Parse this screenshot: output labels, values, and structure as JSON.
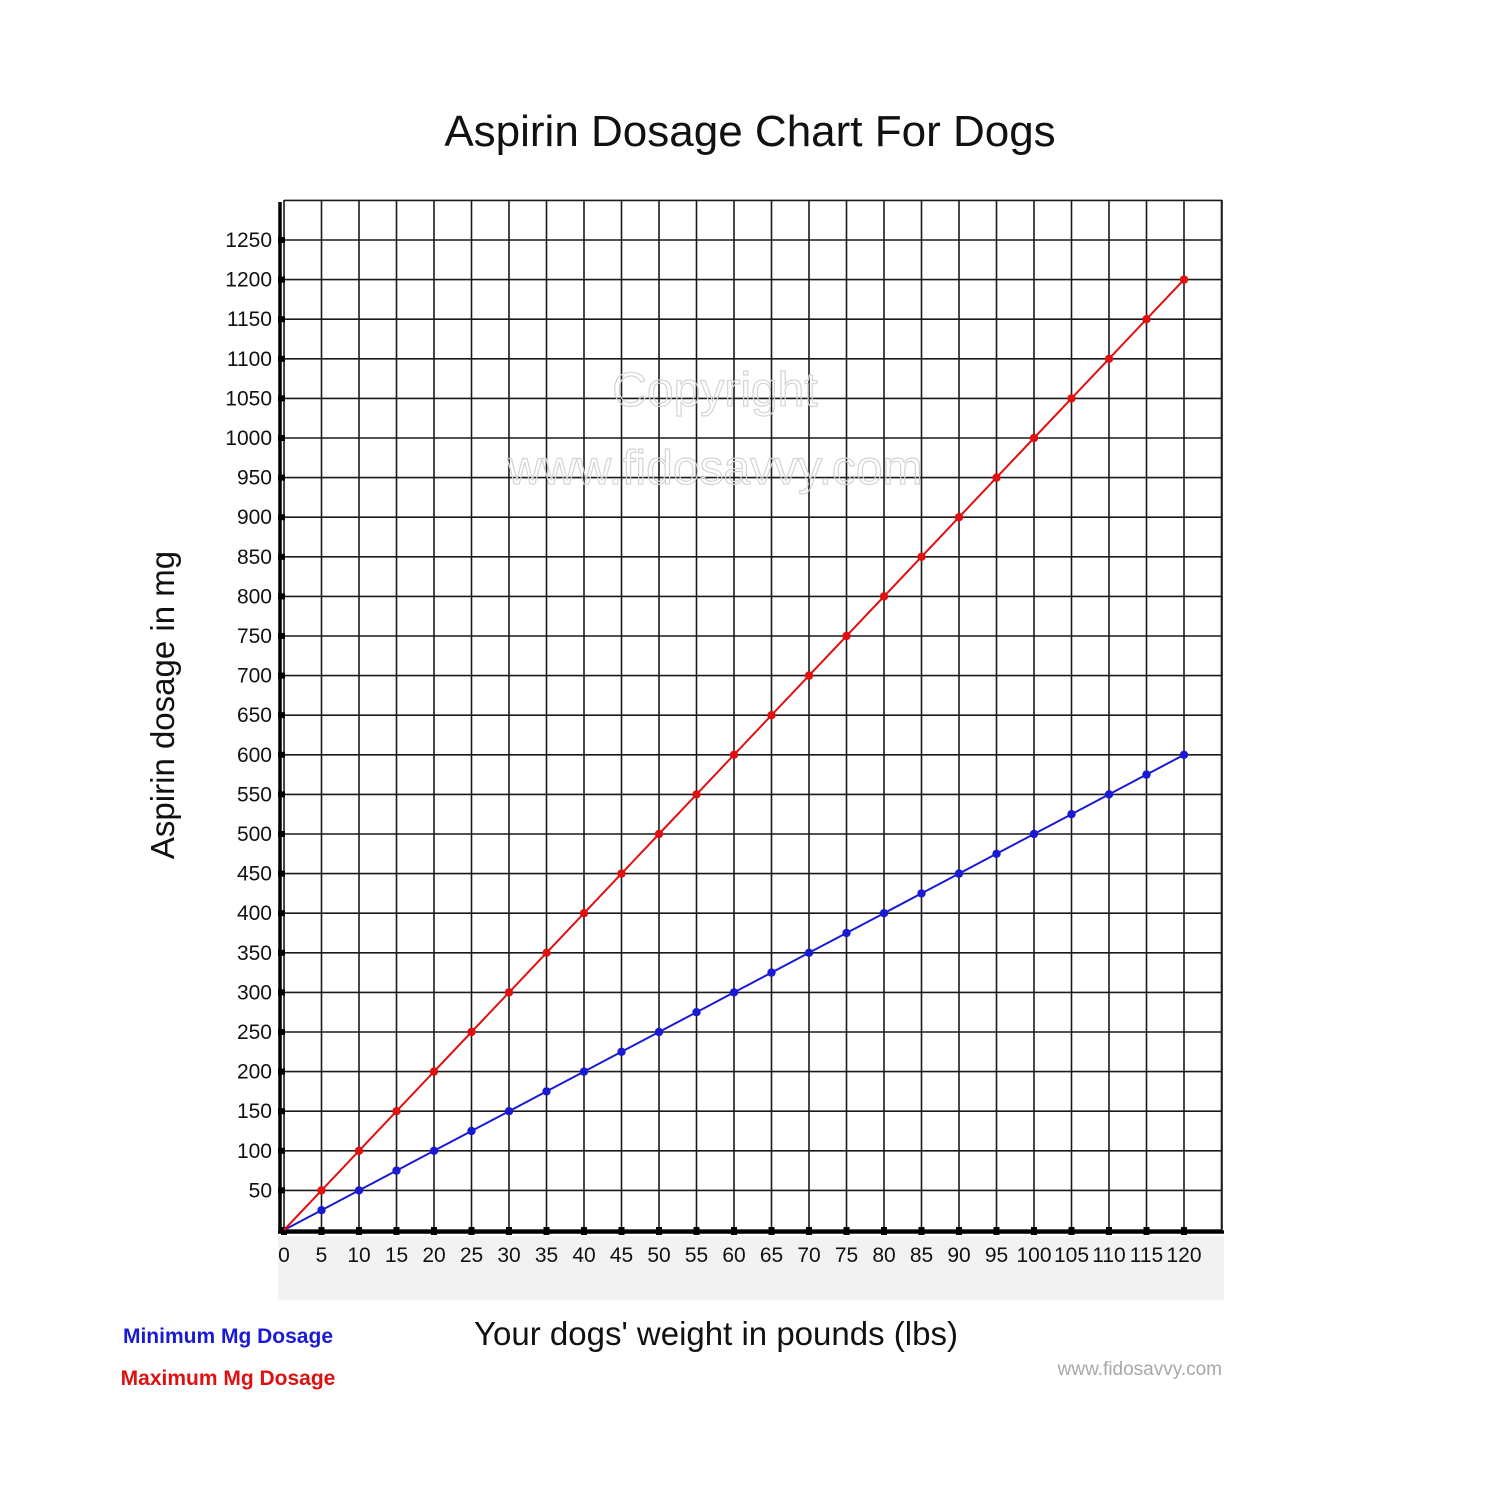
{
  "chart_data": {
    "type": "line",
    "title": "Aspirin Dosage Chart For Dogs",
    "xlabel": "Your dogs' weight in pounds (lbs)",
    "ylabel": "Aspirin dosage in mg",
    "x": [
      0,
      5,
      10,
      15,
      20,
      25,
      30,
      35,
      40,
      45,
      50,
      55,
      60,
      65,
      70,
      75,
      80,
      85,
      90,
      95,
      100,
      105,
      110,
      115,
      120
    ],
    "xlim": [
      0,
      120
    ],
    "ylim": [
      0,
      1250
    ],
    "x_ticks": [
      "0",
      "5",
      "10",
      "15",
      "20",
      "25",
      "30",
      "35",
      "40",
      "45",
      "50",
      "55",
      "60",
      "65",
      "70",
      "75",
      "80",
      "85",
      "90",
      "95",
      "100",
      "105",
      "110",
      "115",
      "120"
    ],
    "y_ticks": [
      "50",
      "100",
      "150",
      "200",
      "250",
      "300",
      "350",
      "400",
      "450",
      "500",
      "550",
      "600",
      "650",
      "700",
      "750",
      "800",
      "850",
      "900",
      "950",
      "1000",
      "1050",
      "1100",
      "1150",
      "1200",
      "1250"
    ],
    "grid": true,
    "legend_position": "bottom-left",
    "series": [
      {
        "name": "Minimum Mg Dosage",
        "color": "#1a1ad6",
        "values": [
          0,
          25,
          50,
          75,
          100,
          125,
          150,
          175,
          200,
          225,
          250,
          275,
          300,
          325,
          350,
          375,
          400,
          425,
          450,
          475,
          500,
          525,
          550,
          575,
          600
        ]
      },
      {
        "name": "Maximum Mg Dosage",
        "color": "#e01010",
        "values": [
          0,
          50,
          100,
          150,
          200,
          250,
          300,
          350,
          400,
          450,
          500,
          550,
          600,
          650,
          700,
          750,
          800,
          850,
          900,
          950,
          1000,
          1050,
          1100,
          1150,
          1200
        ]
      }
    ]
  },
  "watermark": {
    "line1": "Copyright",
    "line2": "www.fidosavvy.com"
  },
  "credit": "www.fidosavvy.com"
}
